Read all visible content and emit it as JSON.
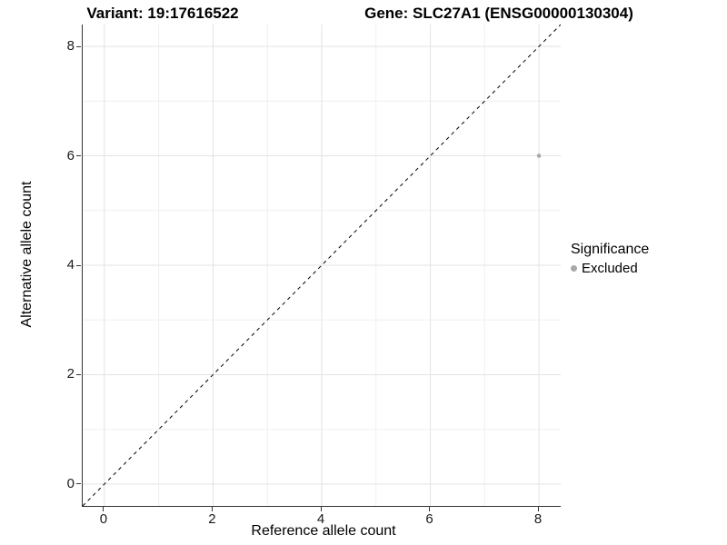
{
  "titles": {
    "left": "Variant: 19:17616522",
    "right": "Gene: SLC27A1 (ENSG00000130304)"
  },
  "chart_data": {
    "type": "scatter",
    "xlabel": "Reference allele count",
    "ylabel": "Alternative allele count",
    "xlim": [
      -0.4,
      8.4
    ],
    "ylim": [
      -0.4,
      8.4
    ],
    "xticks": [
      0,
      2,
      4,
      6,
      8
    ],
    "yticks": [
      0,
      2,
      4,
      6,
      8
    ],
    "x_minor_ticks": [
      1,
      3,
      5,
      7
    ],
    "y_minor_ticks": [
      1,
      3,
      5,
      7
    ],
    "grid": true,
    "identity_line": {
      "show": true,
      "style": "dashed",
      "color": "#000000"
    },
    "series": [
      {
        "name": "Excluded",
        "color": "#a8a8a8",
        "points": [
          {
            "x": 8,
            "y": 6
          }
        ]
      }
    ],
    "legend": {
      "title": "Significance",
      "position": "right",
      "items": [
        {
          "label": "Excluded",
          "color": "#a8a8a8"
        }
      ]
    },
    "colors": {
      "grid_major": "#e3e3e3",
      "grid_minor": "#f0f0f0",
      "axis_line": "#333333",
      "point": "#a8a8a8"
    }
  }
}
